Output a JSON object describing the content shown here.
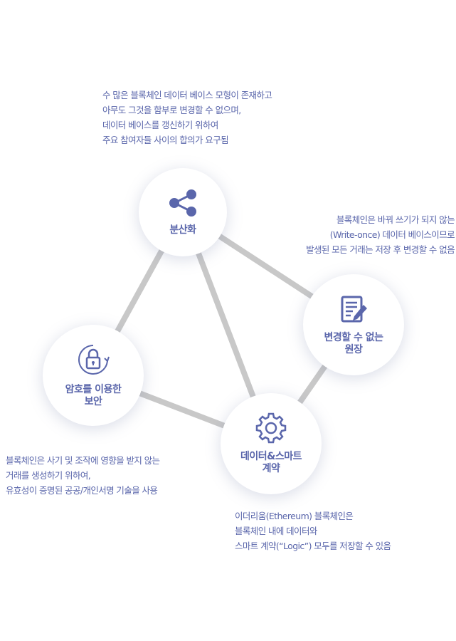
{
  "colors": {
    "accent": "#5a66ab",
    "line": "#c8c8c8",
    "node_bg": "#ffffff"
  },
  "nodes": {
    "decentralization": {
      "label": "분산화",
      "icon": "share-icon"
    },
    "immutable_ledger": {
      "label": "변경할 수 없는\n원장",
      "icon": "document-edit-icon"
    },
    "security": {
      "label": "암호를 이용한\n보안",
      "icon": "lock-icon"
    },
    "smart_contract": {
      "label": "데이터&스마트\n계약",
      "icon": "gear-icon"
    }
  },
  "descriptions": {
    "decentralization": [
      "수 많은 블록체인 데이터 베이스 모형이 존재하고",
      "아무도 그것을 함부로 변경할 수 없으며,",
      "데이터 베이스를 갱신하기 위하여",
      "주요 참여자들 사이의 합의가 요구됨"
    ],
    "immutable_ledger": [
      "블록체인은 바꿔 쓰기가 되지 않는",
      "(Write-once) 데이터 베이스이므로",
      "발생된 모든 거래는 저장 후 변경할 수 없음"
    ],
    "security": [
      "블록체인은 사기 및 조작에 영향을 받지 않는",
      "거래를 생성하기 위하여,",
      "유효성이 증명된 공공/개인서명 기술을 사용"
    ],
    "smart_contract": [
      "이더리움(Ethereum) 블록체인은",
      "블록체인 내에 데이터와",
      "스마트 계약(“Logic”) 모두를 저장할 수 있음"
    ]
  }
}
